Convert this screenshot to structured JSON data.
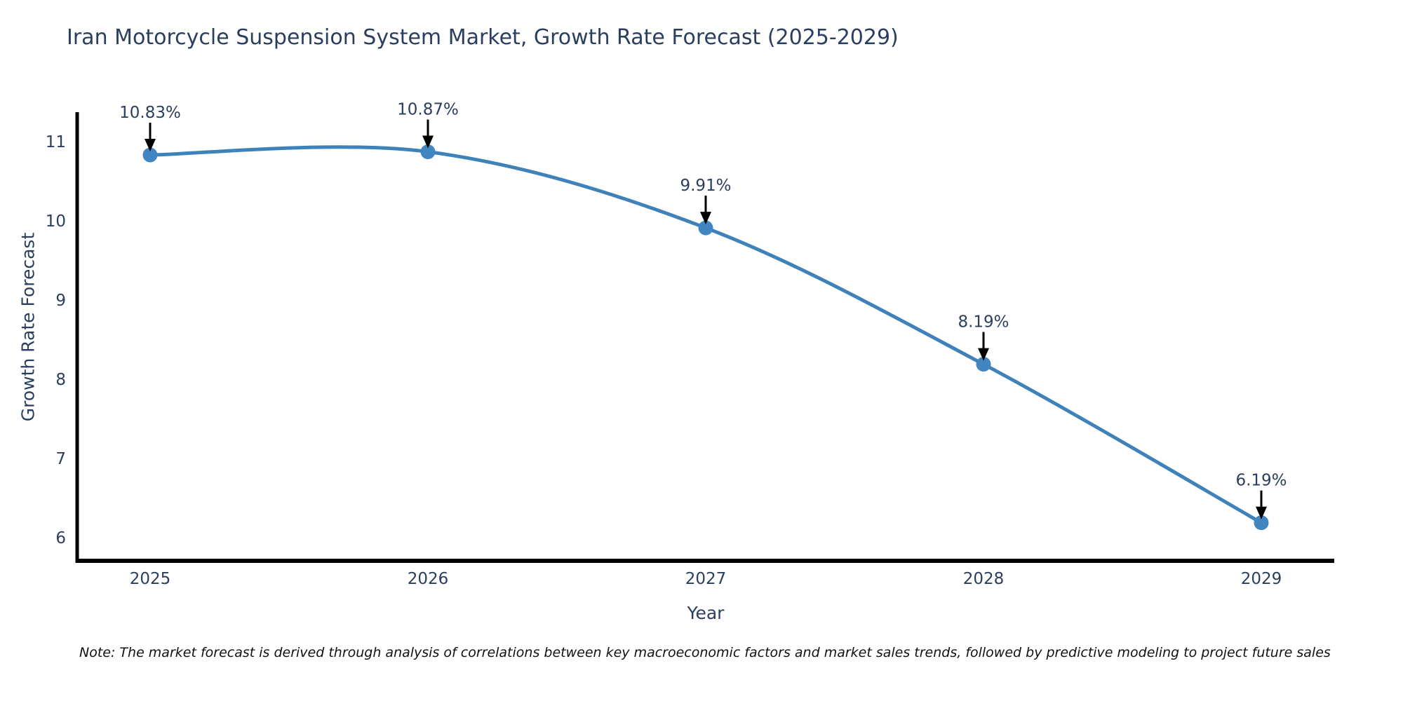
{
  "chart": {
    "title": "Iran Motorcycle Suspension System Market, Growth Rate Forecast (2025-2029)",
    "xlabel": "Year",
    "ylabel": "Growth Rate Forecast",
    "note": "Note: The market forecast is derived through analysis of correlations between key macroeconomic factors and market sales trends, followed by predictive modeling to project future sales"
  },
  "chart_data": {
    "type": "line",
    "line_shape": "spline",
    "x": [
      2025,
      2026,
      2027,
      2028,
      2029
    ],
    "xticklabels": [
      "2025",
      "2026",
      "2027",
      "2028",
      "2029"
    ],
    "values": [
      10.83,
      10.87,
      9.91,
      8.19,
      6.19
    ],
    "point_labels": [
      "10.83%",
      "10.87%",
      "9.91%",
      "8.19%",
      "6.19%"
    ],
    "title": "Iran Motorcycle Suspension System Market, Growth Rate Forecast (2025-2029)",
    "xlabel": "Year",
    "ylabel": "Growth Rate Forecast",
    "yticks": [
      6,
      7,
      8,
      9,
      10,
      11
    ],
    "ylim": [
      5.71,
      11.37
    ],
    "grid": false,
    "legend_position": "none",
    "colors": {
      "line": "#3f82ba",
      "marker": "#4186c0",
      "axis": "#000000",
      "tick_text": "#2a3f5f",
      "annotation_text": "#2a3f5f",
      "arrow": "#000000",
      "title_text": "#2a3f5f"
    }
  }
}
